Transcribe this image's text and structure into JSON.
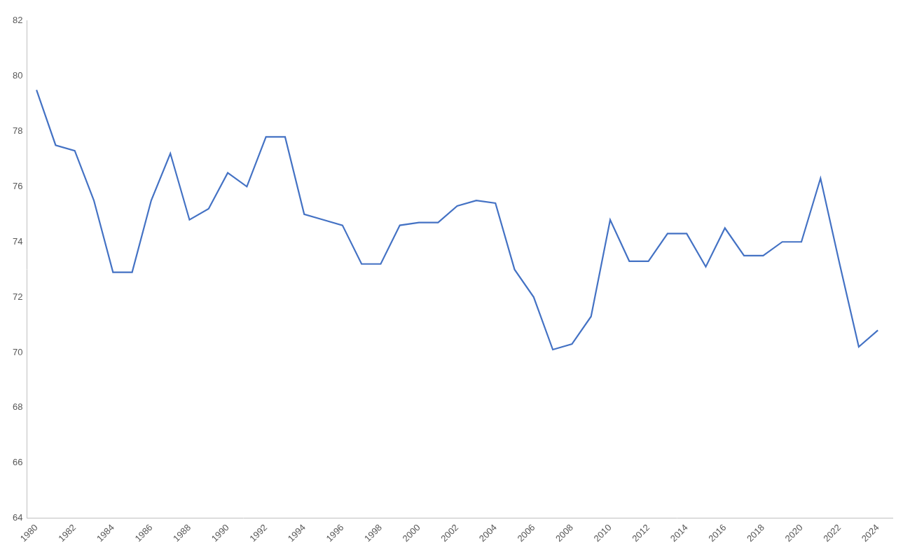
{
  "chart_data": {
    "type": "line",
    "x": [
      1980,
      1981,
      1982,
      1983,
      1984,
      1985,
      1986,
      1987,
      1988,
      1989,
      1990,
      1991,
      1992,
      1993,
      1994,
      1995,
      1996,
      1997,
      1998,
      1999,
      2000,
      2001,
      2002,
      2003,
      2004,
      2005,
      2006,
      2007,
      2008,
      2009,
      2010,
      2011,
      2012,
      2013,
      2014,
      2015,
      2016,
      2017,
      2018,
      2019,
      2020,
      2021,
      2022,
      2023,
      2024
    ],
    "values": [
      79.5,
      77.5,
      77.3,
      75.5,
      72.9,
      72.9,
      75.5,
      77.2,
      74.8,
      75.2,
      76.5,
      76.0,
      77.8,
      77.8,
      75.0,
      74.8,
      74.6,
      73.2,
      73.2,
      74.6,
      74.7,
      74.7,
      75.3,
      75.5,
      75.4,
      73.0,
      72.0,
      70.1,
      70.3,
      71.3,
      74.8,
      73.3,
      73.3,
      74.3,
      74.3,
      73.1,
      74.5,
      73.5,
      73.5,
      74.0,
      74.0,
      76.3,
      73.2,
      70.2,
      70.8
    ],
    "color": "#4472c4",
    "xlim": [
      1979.5,
      2024.8
    ],
    "xticks": [
      1980,
      1982,
      1984,
      1986,
      1988,
      1990,
      1992,
      1994,
      1996,
      1998,
      2000,
      2002,
      2004,
      2006,
      2008,
      2010,
      2012,
      2014,
      2016,
      2018,
      2020,
      2022,
      2024
    ],
    "ylim": [
      64,
      82
    ],
    "yticks": [
      64,
      66,
      68,
      70,
      72,
      74,
      76,
      78,
      80,
      82
    ],
    "grid": false
  }
}
